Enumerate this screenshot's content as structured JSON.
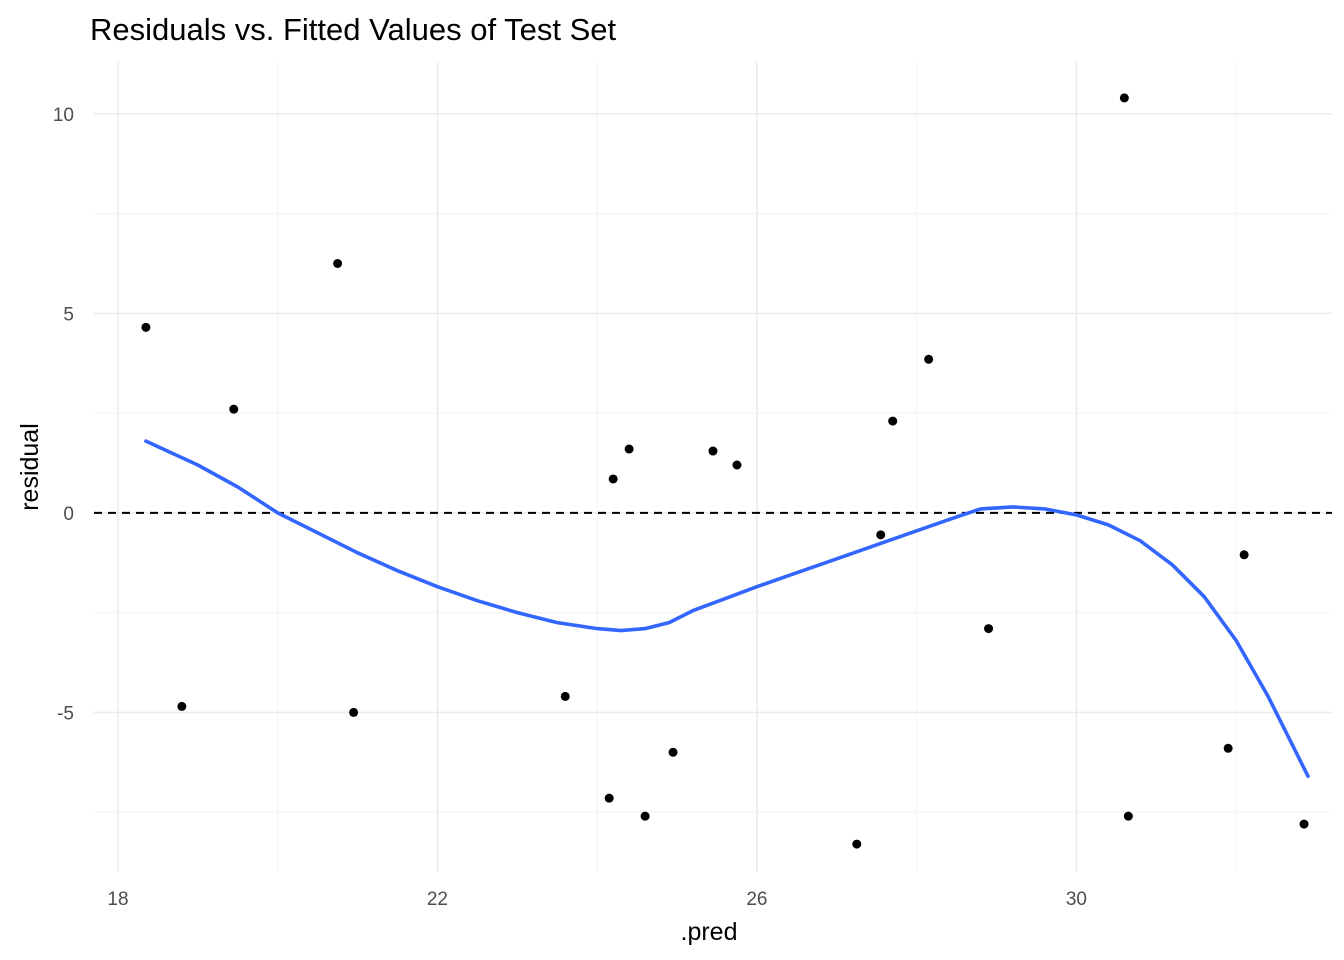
{
  "chart_data": {
    "type": "scatter",
    "title": "Residuals vs. Fitted Values of Test Set",
    "xlabel": ".pred",
    "ylabel": "residual",
    "xlim": [
      17.7,
      33.2
    ],
    "ylim": [
      -9.0,
      11.3
    ],
    "x_ticks": [
      18,
      22,
      26,
      30
    ],
    "x_tick_labels": [
      "18",
      "22",
      "26",
      "30"
    ],
    "x_minor_ticks": [
      20,
      24,
      28,
      32
    ],
    "y_ticks": [
      -5,
      0,
      5,
      10
    ],
    "y_tick_labels": [
      "-5",
      "0",
      "5",
      "10"
    ],
    "y_minor_ticks": [
      -7.5,
      -2.5,
      2.5,
      7.5
    ],
    "grid": true,
    "legend": "none",
    "reference_line": {
      "y": 0,
      "style": "dashed",
      "color": "#000000"
    },
    "point_color": "#000000",
    "series": [
      {
        "values": [
          {
            "x": 18.35,
            "y": 4.65
          },
          {
            "x": 18.8,
            "y": -4.85
          },
          {
            "x": 19.45,
            "y": 2.6
          },
          {
            "x": 20.75,
            "y": 6.25
          },
          {
            "x": 20.95,
            "y": -5.0
          },
          {
            "x": 23.6,
            "y": -4.6
          },
          {
            "x": 24.15,
            "y": -7.15
          },
          {
            "x": 24.2,
            "y": 0.85
          },
          {
            "x": 24.4,
            "y": 1.6
          },
          {
            "x": 24.6,
            "y": -7.6
          },
          {
            "x": 24.95,
            "y": -6.0
          },
          {
            "x": 25.45,
            "y": 1.55
          },
          {
            "x": 25.75,
            "y": 1.2
          },
          {
            "x": 27.25,
            "y": -8.3
          },
          {
            "x": 27.55,
            "y": -0.55
          },
          {
            "x": 27.7,
            "y": 2.3
          },
          {
            "x": 28.15,
            "y": 3.85
          },
          {
            "x": 28.9,
            "y": -2.9
          },
          {
            "x": 30.6,
            "y": 10.4
          },
          {
            "x": 30.65,
            "y": -7.6
          },
          {
            "x": 31.9,
            "y": -5.9
          },
          {
            "x": 32.1,
            "y": -1.05
          },
          {
            "x": 32.85,
            "y": -7.8
          }
        ]
      }
    ],
    "smooth_line": {
      "color": "#3366FF",
      "values": [
        {
          "x": 18.35,
          "y": 1.8
        },
        {
          "x": 19.0,
          "y": 1.2
        },
        {
          "x": 19.5,
          "y": 0.65
        },
        {
          "x": 20.0,
          "y": 0.0
        },
        {
          "x": 20.5,
          "y": -0.5
        },
        {
          "x": 21.0,
          "y": -1.0
        },
        {
          "x": 21.5,
          "y": -1.45
        },
        {
          "x": 22.0,
          "y": -1.85
        },
        {
          "x": 22.5,
          "y": -2.2
        },
        {
          "x": 23.0,
          "y": -2.5
        },
        {
          "x": 23.5,
          "y": -2.75
        },
        {
          "x": 24.0,
          "y": -2.9
        },
        {
          "x": 24.3,
          "y": -2.95
        },
        {
          "x": 24.6,
          "y": -2.9
        },
        {
          "x": 24.9,
          "y": -2.75
        },
        {
          "x": 25.2,
          "y": -2.45
        },
        {
          "x": 25.6,
          "y": -2.15
        },
        {
          "x": 26.0,
          "y": -1.85
        },
        {
          "x": 26.5,
          "y": -1.5
        },
        {
          "x": 27.0,
          "y": -1.15
        },
        {
          "x": 27.5,
          "y": -0.8
        },
        {
          "x": 28.0,
          "y": -0.45
        },
        {
          "x": 28.5,
          "y": -0.1
        },
        {
          "x": 28.8,
          "y": 0.1
        },
        {
          "x": 29.2,
          "y": 0.15
        },
        {
          "x": 29.6,
          "y": 0.1
        },
        {
          "x": 30.0,
          "y": -0.05
        },
        {
          "x": 30.4,
          "y": -0.3
        },
        {
          "x": 30.8,
          "y": -0.7
        },
        {
          "x": 31.2,
          "y": -1.3
        },
        {
          "x": 31.6,
          "y": -2.1
        },
        {
          "x": 32.0,
          "y": -3.2
        },
        {
          "x": 32.4,
          "y": -4.6
        },
        {
          "x": 32.7,
          "y": -5.8
        },
        {
          "x": 32.9,
          "y": -6.6
        }
      ]
    }
  }
}
